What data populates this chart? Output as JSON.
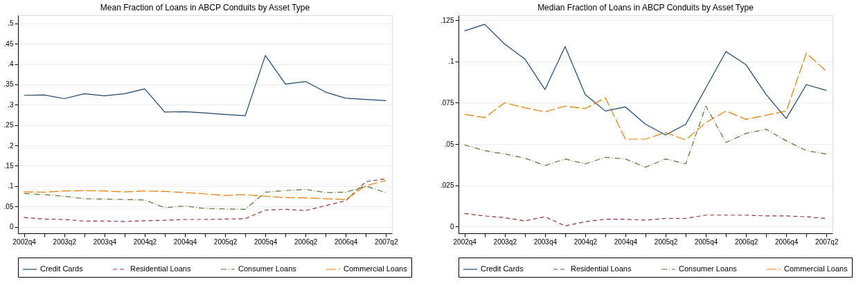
{
  "chart_data": [
    {
      "type": "line",
      "title": "Mean Fraction of Loans in ABCP Conduits by Asset Type",
      "categories": [
        "2002q4",
        null,
        "2003q2",
        null,
        "2003q4",
        null,
        "2004q2",
        null,
        "2004q4",
        null,
        "2005q2",
        null,
        "2005q4",
        null,
        "2006q2",
        null,
        "2006q4",
        null,
        "2007q2"
      ],
      "series": [
        {
          "name": "Credit Cards",
          "color": "#1a476f",
          "line_style": "solid",
          "values": [
            0.323,
            0.324,
            0.315,
            0.327,
            0.322,
            0.327,
            0.339,
            0.282,
            0.283,
            0.28,
            0.276,
            0.273,
            0.421,
            0.351,
            0.357,
            0.331,
            0.316,
            0.313,
            0.31
          ]
        },
        {
          "name": "Residential Loans",
          "color": "#90353b",
          "line_style": "dashed",
          "values": [
            0.023,
            0.019,
            0.018,
            0.014,
            0.014,
            0.013,
            0.015,
            0.016,
            0.018,
            0.018,
            0.019,
            0.02,
            0.041,
            0.043,
            0.04,
            0.052,
            0.064,
            0.111,
            0.118
          ]
        },
        {
          "name": "Consumer Loans",
          "color": "#55752f",
          "line_style": "dashdot",
          "values": [
            0.082,
            0.079,
            0.075,
            0.069,
            0.068,
            0.067,
            0.066,
            0.047,
            0.051,
            0.045,
            0.044,
            0.043,
            0.085,
            0.089,
            0.092,
            0.084,
            0.085,
            0.1,
            0.084
          ]
        },
        {
          "name": "Commercial Loans",
          "color": "#e37e00",
          "line_style": "longdash",
          "values": [
            0.086,
            0.085,
            0.088,
            0.089,
            0.088,
            0.086,
            0.088,
            0.087,
            0.084,
            0.081,
            0.077,
            0.079,
            0.075,
            0.072,
            0.071,
            0.069,
            0.067,
            0.101,
            0.114
          ]
        }
      ],
      "ylim": [
        -0.016,
        0.52
      ],
      "yticks": [
        0,
        {
          "value": 0.05,
          "label": ".05"
        },
        {
          "value": 0.1,
          "label": ".1"
        },
        {
          "value": 0.15,
          "label": ".15"
        },
        {
          "value": 0.2,
          "label": ".2"
        },
        {
          "value": 0.25,
          "label": ".25"
        },
        {
          "value": 0.3,
          "label": ".3"
        },
        {
          "value": 0.35,
          "label": ".35"
        },
        {
          "value": 0.4,
          "label": ".4"
        },
        {
          "value": 0.45,
          "label": ".45"
        },
        {
          "value": 0.5,
          "label": ".5"
        }
      ],
      "grid": "y",
      "legend": "bottom"
    },
    {
      "type": "line",
      "title": "Median Fraction of Loans in ABCP Conduits by Asset Type",
      "categories": [
        "2002q4",
        null,
        "2003q2",
        null,
        "2003q4",
        null,
        "2004q2",
        null,
        "2004q4",
        null,
        "2005q2",
        null,
        "2005q4",
        null,
        "2006q2",
        null,
        "2006q4",
        null,
        "2007q2"
      ],
      "series": [
        {
          "name": "Credit Cards",
          "color": "#1a476f",
          "line_style": "solid",
          "values": [
            0.1185,
            0.1225,
            0.1105,
            0.1015,
            0.083,
            0.109,
            0.08,
            0.07,
            0.0725,
            0.062,
            0.0555,
            0.062,
            0.084,
            0.106,
            0.098,
            0.08,
            0.0655,
            0.086,
            0.0825
          ]
        },
        {
          "name": "Residential Loans",
          "color": "#90353b",
          "line_style": "dashed",
          "values": [
            0.008,
            0.0065,
            0.0055,
            0.0035,
            0.006,
            0.0005,
            0.003,
            0.0045,
            0.0045,
            0.004,
            0.005,
            0.005,
            0.007,
            0.007,
            0.007,
            0.0065,
            0.0065,
            0.006,
            0.005
          ]
        },
        {
          "name": "Consumer Loans",
          "color": "#55752f",
          "line_style": "dashdot",
          "values": [
            0.0495,
            0.046,
            0.044,
            0.0415,
            0.037,
            0.041,
            0.038,
            0.042,
            0.041,
            0.036,
            0.041,
            0.038,
            0.073,
            0.051,
            0.0565,
            0.059,
            0.052,
            0.046,
            0.044
          ]
        },
        {
          "name": "Commercial Loans",
          "color": "#e37e00",
          "line_style": "longdash",
          "values": [
            0.068,
            0.066,
            0.075,
            0.072,
            0.0695,
            0.073,
            0.0715,
            0.078,
            0.053,
            0.053,
            0.057,
            0.0525,
            0.063,
            0.07,
            0.065,
            0.0675,
            0.07,
            0.105,
            0.094
          ]
        }
      ],
      "ylim": [
        -0.004,
        0.128
      ],
      "yticks": [
        0,
        {
          "value": 0.025,
          "label": ".025"
        },
        {
          "value": 0.05,
          "label": ".05"
        },
        {
          "value": 0.075,
          "label": ".075"
        },
        {
          "value": 0.1,
          "label": ".1"
        },
        {
          "value": 0.125,
          "label": ".125"
        }
      ],
      "grid": "y",
      "legend": "bottom"
    }
  ]
}
